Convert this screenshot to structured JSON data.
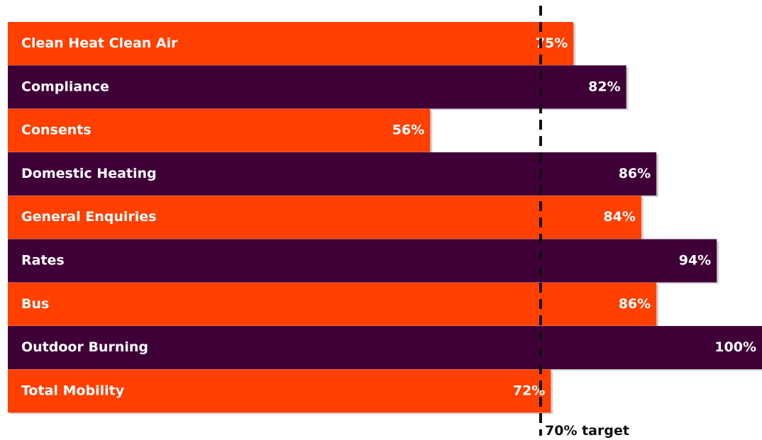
{
  "chart_data": {
    "type": "bar",
    "orientation": "horizontal",
    "categories": [
      "Clean Heat Clean Air",
      "Compliance",
      "Consents",
      "Domestic Heating",
      "General Enquiries",
      "Rates",
      "Bus",
      "Outdoor Burning",
      "Total Mobility"
    ],
    "values": [
      75,
      82,
      56,
      86,
      84,
      94,
      86,
      100,
      72
    ],
    "value_labels": [
      "75%",
      "82%",
      "56%",
      "86%",
      "84%",
      "94%",
      "86%",
      "100%",
      "72%"
    ],
    "unit": "%",
    "xlim": [
      0,
      100
    ],
    "target": {
      "value": 70,
      "label": "70% target"
    },
    "bar_colors": [
      "#ff4000",
      "#3f0038"
    ],
    "target_line_color": "#111111",
    "grid": false,
    "legend": "none"
  }
}
